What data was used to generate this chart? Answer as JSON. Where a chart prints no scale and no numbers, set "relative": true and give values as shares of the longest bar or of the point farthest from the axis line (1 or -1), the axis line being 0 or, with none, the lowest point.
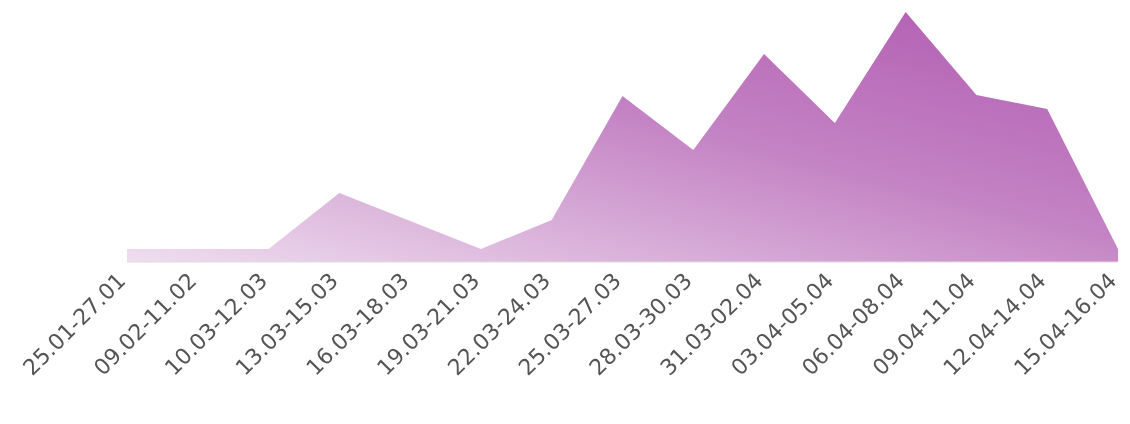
{
  "chart_data": {
    "type": "area",
    "relative": true,
    "color": "#b05ab0",
    "grid": false,
    "legend": false,
    "categories": [
      "25.01-27.01",
      "09.02-11.02",
      "10.03-12.03",
      "13.03-15.03",
      "16.03-18.03",
      "19.03-21.03",
      "22.03-24.03",
      "25.03-27.03",
      "28.03-30.03",
      "31.03-02.04",
      "03.04-05.04",
      "06.04-08.04",
      "09.04-11.04",
      "12.04-14.04",
      "15.04-16.04"
    ],
    "values": [
      0.052,
      0.052,
      0.052,
      0.276,
      0.164,
      0.052,
      0.168,
      0.664,
      0.448,
      0.832,
      0.556,
      1,
      0.668,
      0.612,
      0.052
    ]
  }
}
